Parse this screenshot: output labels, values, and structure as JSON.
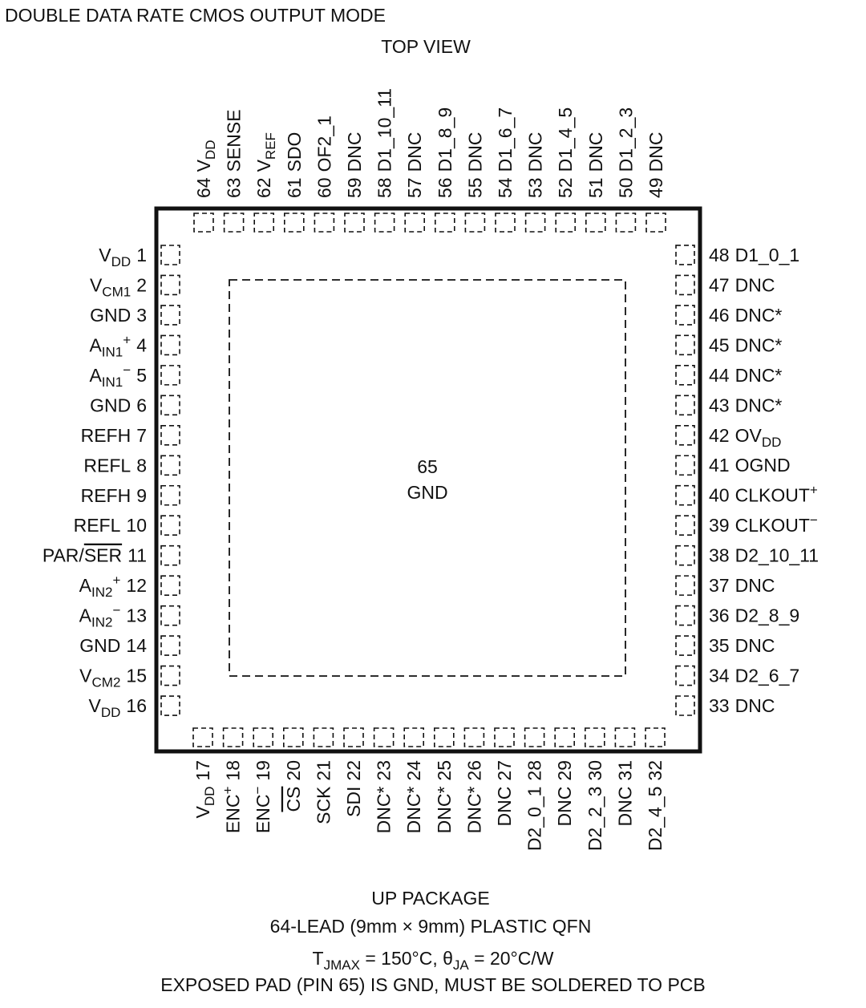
{
  "header": {
    "title": "DOUBLE DATA RATE CMOS OUTPUT MODE",
    "view": "TOP VIEW"
  },
  "center": {
    "number": 65,
    "label": "GND"
  },
  "pins": {
    "left": [
      {
        "number": 1,
        "label": [
          {
            "text": "V"
          },
          {
            "sub": "DD"
          }
        ]
      },
      {
        "number": 2,
        "label": [
          {
            "text": "V"
          },
          {
            "sub": "CM1"
          }
        ]
      },
      {
        "number": 3,
        "label": [
          {
            "text": "GND"
          }
        ]
      },
      {
        "number": 4,
        "label": [
          {
            "text": "A"
          },
          {
            "sub": "IN1"
          },
          {
            "sup": "+"
          }
        ]
      },
      {
        "number": 5,
        "label": [
          {
            "text": "A"
          },
          {
            "sub": "IN1"
          },
          {
            "sup": "−"
          }
        ]
      },
      {
        "number": 6,
        "label": [
          {
            "text": "GND"
          }
        ]
      },
      {
        "number": 7,
        "label": [
          {
            "text": "REFH"
          }
        ]
      },
      {
        "number": 8,
        "label": [
          {
            "text": "REFL"
          }
        ]
      },
      {
        "number": 9,
        "label": [
          {
            "text": "REFH"
          }
        ]
      },
      {
        "number": 10,
        "label": [
          {
            "text": "REFL"
          }
        ]
      },
      {
        "number": 11,
        "label": [
          {
            "text": "PAR/"
          },
          {
            "over": "SER"
          }
        ]
      },
      {
        "number": 12,
        "label": [
          {
            "text": "A"
          },
          {
            "sub": "IN2"
          },
          {
            "sup": "+"
          }
        ]
      },
      {
        "number": 13,
        "label": [
          {
            "text": "A"
          },
          {
            "sub": "IN2"
          },
          {
            "sup": "−"
          }
        ]
      },
      {
        "number": 14,
        "label": [
          {
            "text": "GND"
          }
        ]
      },
      {
        "number": 15,
        "label": [
          {
            "text": "V"
          },
          {
            "sub": "CM2"
          }
        ]
      },
      {
        "number": 16,
        "label": [
          {
            "text": "V"
          },
          {
            "sub": "DD"
          }
        ]
      }
    ],
    "bottom": [
      {
        "number": 17,
        "label": [
          {
            "text": "V"
          },
          {
            "sub": "DD"
          }
        ]
      },
      {
        "number": 18,
        "label": [
          {
            "text": "ENC"
          },
          {
            "sup": "+"
          }
        ]
      },
      {
        "number": 19,
        "label": [
          {
            "text": "ENC"
          },
          {
            "sup": "−"
          }
        ]
      },
      {
        "number": 20,
        "label": [
          {
            "over": "CS"
          }
        ]
      },
      {
        "number": 21,
        "label": [
          {
            "text": "SCK"
          }
        ]
      },
      {
        "number": 22,
        "label": [
          {
            "text": "SDI"
          }
        ]
      },
      {
        "number": 23,
        "label": [
          {
            "text": "DNC*"
          }
        ]
      },
      {
        "number": 24,
        "label": [
          {
            "text": "DNC*"
          }
        ]
      },
      {
        "number": 25,
        "label": [
          {
            "text": "DNC*"
          }
        ]
      },
      {
        "number": 26,
        "label": [
          {
            "text": "DNC*"
          }
        ]
      },
      {
        "number": 27,
        "label": [
          {
            "text": "DNC"
          }
        ]
      },
      {
        "number": 28,
        "label": [
          {
            "text": "D2_0_1"
          }
        ]
      },
      {
        "number": 29,
        "label": [
          {
            "text": "DNC"
          }
        ]
      },
      {
        "number": 30,
        "label": [
          {
            "text": "D2_2_3"
          }
        ]
      },
      {
        "number": 31,
        "label": [
          {
            "text": "DNC"
          }
        ]
      },
      {
        "number": 32,
        "label": [
          {
            "text": "D2_4_5"
          }
        ]
      }
    ],
    "right": [
      {
        "number": 33,
        "label": [
          {
            "text": "DNC"
          }
        ]
      },
      {
        "number": 34,
        "label": [
          {
            "text": "D2_6_7"
          }
        ]
      },
      {
        "number": 35,
        "label": [
          {
            "text": "DNC"
          }
        ]
      },
      {
        "number": 36,
        "label": [
          {
            "text": "D2_8_9"
          }
        ]
      },
      {
        "number": 37,
        "label": [
          {
            "text": "DNC"
          }
        ]
      },
      {
        "number": 38,
        "label": [
          {
            "text": "D2_10_11"
          }
        ]
      },
      {
        "number": 39,
        "label": [
          {
            "text": "CLKOUT"
          },
          {
            "sup": "−"
          }
        ]
      },
      {
        "number": 40,
        "label": [
          {
            "text": "CLKOUT"
          },
          {
            "sup": "+"
          }
        ]
      },
      {
        "number": 41,
        "label": [
          {
            "text": "OGND"
          }
        ]
      },
      {
        "number": 42,
        "label": [
          {
            "text": "OV"
          },
          {
            "sub": "DD"
          }
        ]
      },
      {
        "number": 43,
        "label": [
          {
            "text": "DNC*"
          }
        ]
      },
      {
        "number": 44,
        "label": [
          {
            "text": "DNC*"
          }
        ]
      },
      {
        "number": 45,
        "label": [
          {
            "text": "DNC*"
          }
        ]
      },
      {
        "number": 46,
        "label": [
          {
            "text": "DNC*"
          }
        ]
      },
      {
        "number": 47,
        "label": [
          {
            "text": "DNC"
          }
        ]
      },
      {
        "number": 48,
        "label": [
          {
            "text": "D1_0_1"
          }
        ]
      }
    ],
    "top": [
      {
        "number": 49,
        "label": [
          {
            "text": "DNC"
          }
        ]
      },
      {
        "number": 50,
        "label": [
          {
            "text": "D1_2_3"
          }
        ]
      },
      {
        "number": 51,
        "label": [
          {
            "text": "DNC"
          }
        ]
      },
      {
        "number": 52,
        "label": [
          {
            "text": "D1_4_5"
          }
        ]
      },
      {
        "number": 53,
        "label": [
          {
            "text": "DNC"
          }
        ]
      },
      {
        "number": 54,
        "label": [
          {
            "text": "D1_6_7"
          }
        ]
      },
      {
        "number": 55,
        "label": [
          {
            "text": "DNC"
          }
        ]
      },
      {
        "number": 56,
        "label": [
          {
            "text": "D1_8_9"
          }
        ]
      },
      {
        "number": 57,
        "label": [
          {
            "text": "DNC"
          }
        ]
      },
      {
        "number": 58,
        "label": [
          {
            "text": "D1_10_11"
          }
        ]
      },
      {
        "number": 59,
        "label": [
          {
            "text": "DNC"
          }
        ]
      },
      {
        "number": 60,
        "label": [
          {
            "text": "OF2_1"
          }
        ]
      },
      {
        "number": 61,
        "label": [
          {
            "text": "SDO"
          }
        ]
      },
      {
        "number": 62,
        "label": [
          {
            "text": "V"
          },
          {
            "sub": "REF"
          }
        ]
      },
      {
        "number": 63,
        "label": [
          {
            "text": "SENSE"
          }
        ]
      },
      {
        "number": 64,
        "label": [
          {
            "text": "V"
          },
          {
            "sub": "DD"
          }
        ]
      }
    ]
  },
  "footer": {
    "package": "UP PACKAGE",
    "description": "64-LEAD (9mm × 9mm) PLASTIC QFN",
    "thermal": [
      {
        "text": "T"
      },
      {
        "sub": "JMAX"
      },
      {
        "text": " = 150°C, θ"
      },
      {
        "sub": "JA"
      },
      {
        "text": " = 20°C/W"
      }
    ],
    "note": "EXPOSED PAD (PIN 65) IS GND, MUST BE SOLDERED TO PCB"
  }
}
